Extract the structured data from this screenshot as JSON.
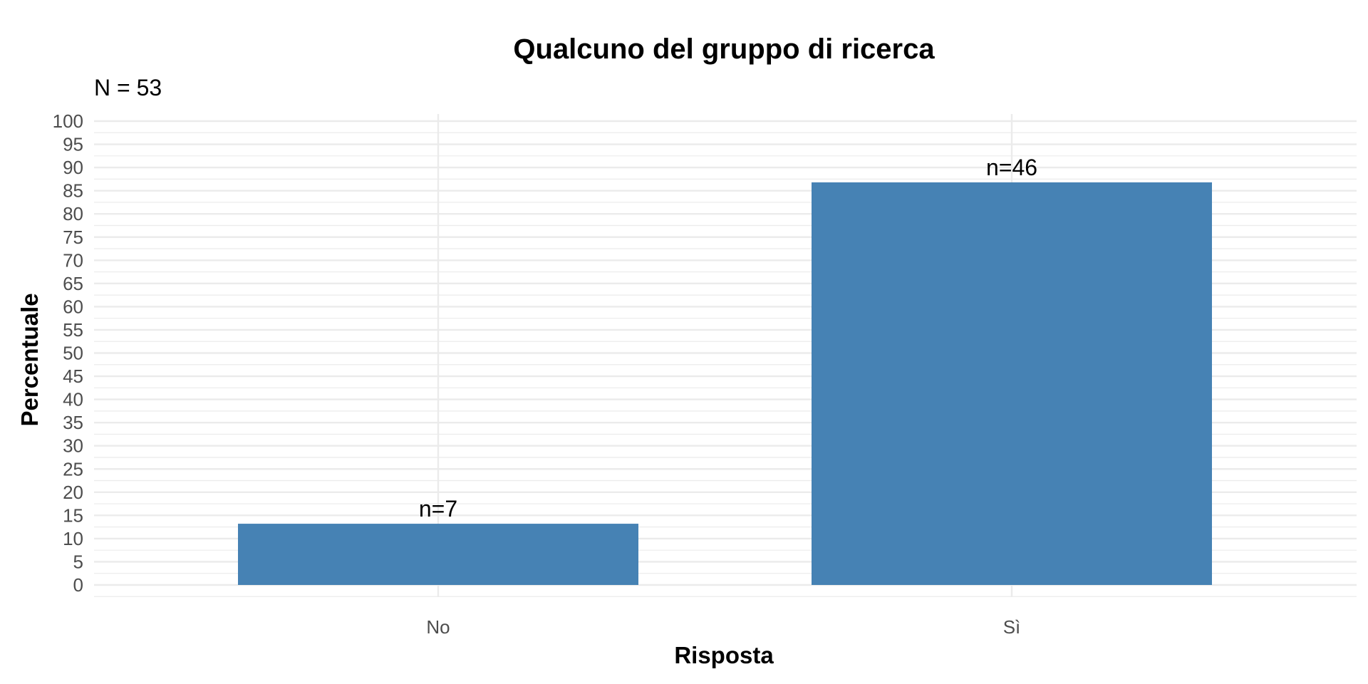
{
  "chart_data": {
    "type": "bar",
    "title": "Qualcuno del gruppo di ricerca",
    "subtitle": "N = 53",
    "xlabel": "Risposta",
    "ylabel": "Percentuale",
    "categories": [
      "No",
      "Sì"
    ],
    "values": [
      13.2,
      86.8
    ],
    "labels": [
      "n=7",
      "n=46"
    ],
    "ylim": [
      0,
      100
    ],
    "yticks": [
      0,
      5,
      10,
      15,
      20,
      25,
      30,
      35,
      40,
      45,
      50,
      55,
      60,
      65,
      70,
      75,
      80,
      85,
      90,
      95,
      100
    ],
    "grid": true,
    "legend": "none",
    "bar_color": "#4682B4",
    "grid_color": "#ebebeb"
  }
}
